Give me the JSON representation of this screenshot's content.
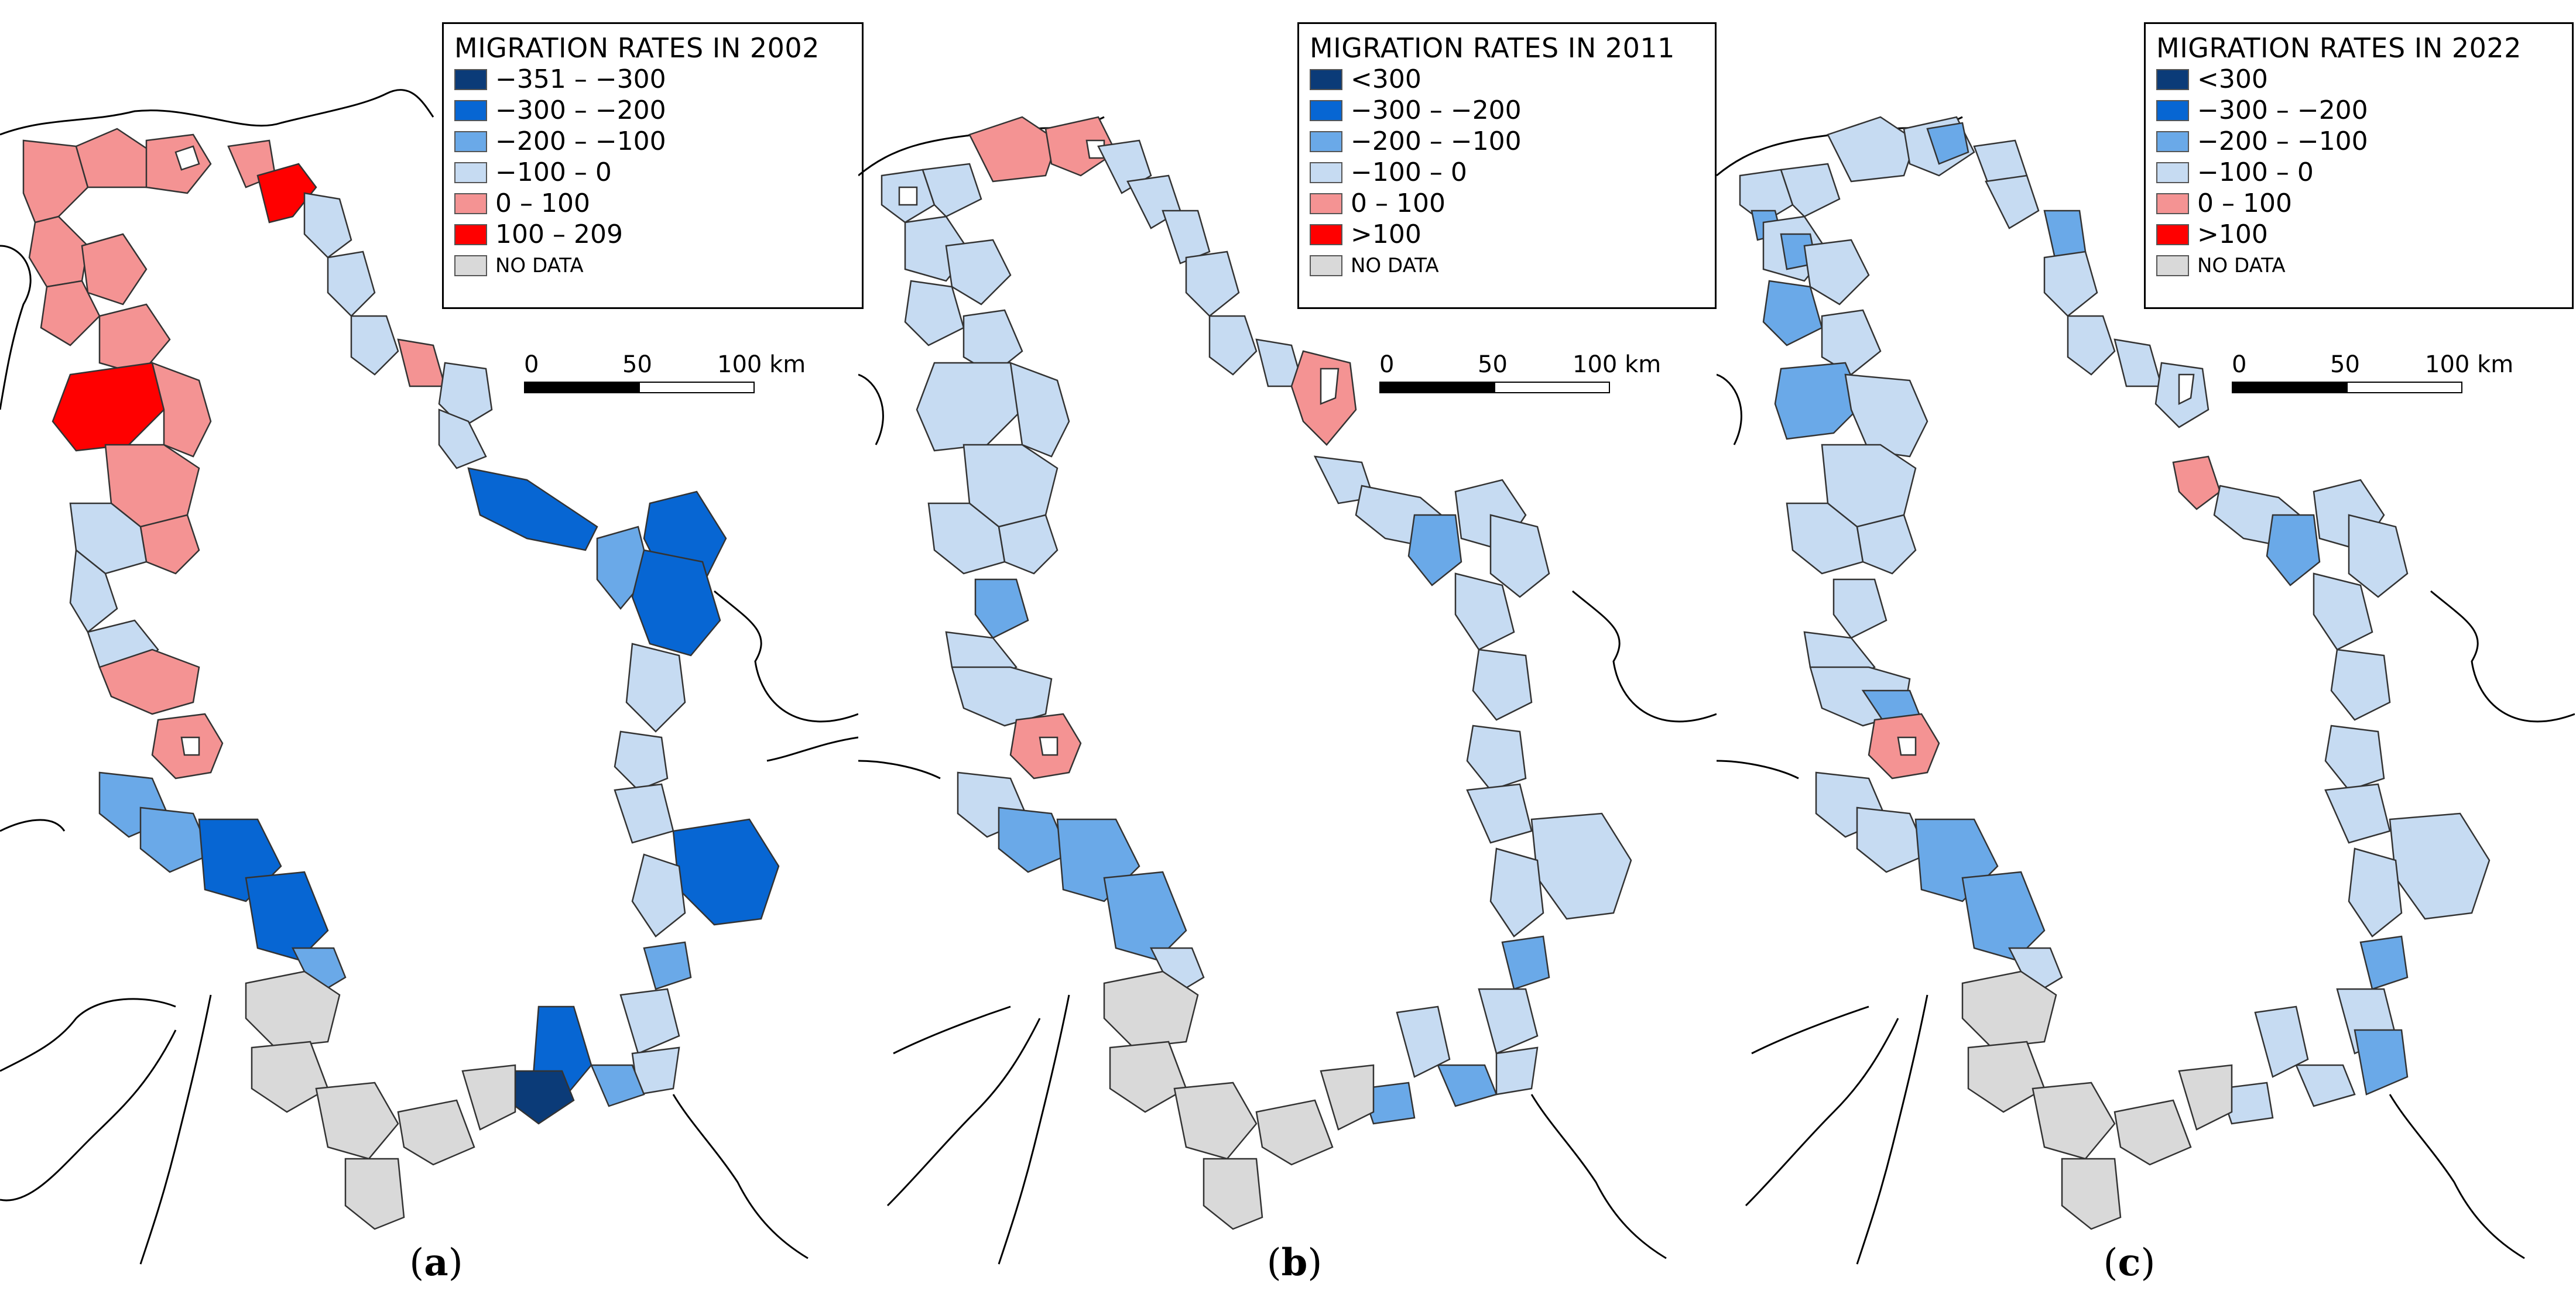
{
  "figure": {
    "panels": [
      {
        "id": "a",
        "caption_letter": "a",
        "legend": {
          "title": "MIGRATION RATES IN 2002",
          "classes": [
            {
              "label": "−351 – −300",
              "color": "#0b3b78"
            },
            {
              "label": "−300 – −200",
              "color": "#0766d3"
            },
            {
              "label": "−200 – −100",
              "color": "#6aa9e8"
            },
            {
              "label": "−100 – 0",
              "color": "#c6dbf2"
            },
            {
              "label": "0 – 100",
              "color": "#f49393"
            },
            {
              "label": "100 – 209",
              "color": "#ff0000"
            },
            {
              "label": "NO DATA",
              "color": "#d9d9d9"
            }
          ]
        },
        "scale": {
          "ticks": [
            "0",
            "50",
            "100 km"
          ]
        }
      },
      {
        "id": "b",
        "caption_letter": "b",
        "legend": {
          "title": "MIGRATION RATES IN 2011",
          "classes": [
            {
              "label": "<300",
              "color": "#0b3b78"
            },
            {
              "label": "−300 – −200",
              "color": "#0766d3"
            },
            {
              "label": "−200 – −100",
              "color": "#6aa9e8"
            },
            {
              "label": "−100 – 0",
              "color": "#c6dbf2"
            },
            {
              "label": "0 – 100",
              "color": "#f49393"
            },
            {
              "label": ">100",
              "color": "#ff0000"
            },
            {
              "label": "NO DATA",
              "color": "#d9d9d9"
            }
          ]
        },
        "scale": {
          "ticks": [
            "0",
            "50",
            "100 km"
          ]
        }
      },
      {
        "id": "c",
        "caption_letter": "c",
        "legend": {
          "title": "MIGRATION RATES IN 2022",
          "classes": [
            {
              "label": "<300",
              "color": "#0b3b78"
            },
            {
              "label": "−300 – −200",
              "color": "#0766d3"
            },
            {
              "label": "−200 – −100",
              "color": "#6aa9e8"
            },
            {
              "label": "−100 – 0",
              "color": "#c6dbf2"
            },
            {
              "label": "0 – 100",
              "color": "#f49393"
            },
            {
              "label": ">100",
              "color": "#ff0000"
            },
            {
              "label": "NO DATA",
              "color": "#d9d9d9"
            }
          ]
        },
        "scale": {
          "ticks": [
            "0",
            "50",
            "100 km"
          ]
        }
      }
    ]
  }
}
